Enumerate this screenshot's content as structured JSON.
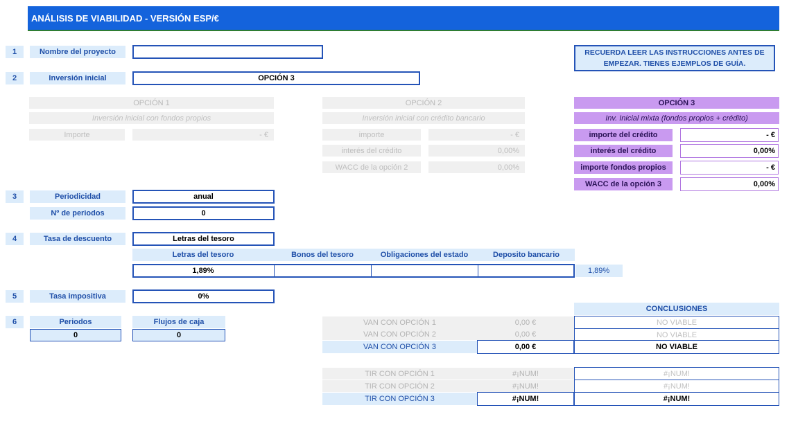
{
  "title": "ANÁLISIS DE VIABILIDAD - VERSIÓN ESP/€",
  "note": "RECUERDA LEER LAS INSTRUCCIONES ANTES DE EMPEZAR. TIENES EJEMPLOS DE GUÍA.",
  "steps": {
    "s1": {
      "num": "1",
      "label": "Nombre del proyecto",
      "value": ""
    },
    "s2": {
      "num": "2",
      "label": "Inversión inicial",
      "value": "OPCIÓN 3"
    },
    "s3": {
      "num": "3",
      "label": "Periodicidad",
      "value": "anual",
      "label2": "Nº de periodos",
      "value2": "0"
    },
    "s4": {
      "num": "4",
      "label": "Tasa de descuento",
      "value": "Letras del tesoro"
    },
    "s5": {
      "num": "5",
      "label": "Tasa impositiva",
      "value": "0%"
    },
    "s6": {
      "num": "6",
      "label": "Periodos",
      "value": "0",
      "label2": "Flujos de caja",
      "value2": "0"
    }
  },
  "option1": {
    "header": "OPCIÓN 1",
    "subtitle": "Inversión inicial con fondos propios",
    "importe_label": "Importe",
    "importe_value": "-   €"
  },
  "option2": {
    "header": "OPCIÓN 2",
    "subtitle": "Inversión inicial con crédito bancario",
    "importe_label": "importe",
    "importe_value": "-   €",
    "interes_label": "interés del crédito",
    "interes_value": "0,00%",
    "wacc_label": "WACC de la opción 2",
    "wacc_value": "0,00%"
  },
  "option3": {
    "header": "OPCIÓN 3",
    "subtitle": "Inv. Inicial mixta (fondos propios + crédito)",
    "importe_label": "importe del crédito",
    "importe_value": "-   €",
    "interes_label": "interés del crédito",
    "interes_value": "0,00%",
    "fondos_label": "importe fondos propios",
    "fondos_value": "-   €",
    "wacc_label": "WACC de la opción 3",
    "wacc_value": "0,00%"
  },
  "rates": {
    "headers": [
      "Letras del tesoro",
      "Bonos del tesoro",
      "Obligaciones del estado",
      "Deposito bancario"
    ],
    "values": [
      "1,89%",
      "",
      "",
      ""
    ],
    "selected": "1,89%"
  },
  "van": {
    "rows": [
      {
        "label": "VAN CON OPCIÓN 1",
        "value": "0,00 €",
        "conclusion": "NO VIABLE"
      },
      {
        "label": "VAN CON OPCIÓN 2",
        "value": "0,00 €",
        "conclusion": "NO VIABLE"
      },
      {
        "label": "VAN CON OPCIÓN 3",
        "value": "0,00 €",
        "conclusion": "NO VIABLE"
      }
    ]
  },
  "tir": {
    "rows": [
      {
        "label": "TIR CON OPCIÓN 1",
        "value": "#¡NUM!",
        "conclusion": "#¡NUM!"
      },
      {
        "label": "TIR CON OPCIÓN 2",
        "value": "#¡NUM!",
        "conclusion": "#¡NUM!"
      },
      {
        "label": "TIR CON OPCIÓN 3",
        "value": "#¡NUM!",
        "conclusion": "#¡NUM!"
      }
    ]
  },
  "conclusiones_header": "CONCLUSIONES",
  "colors": {
    "accent": "#1463dc",
    "light_blue": "#dcecfb",
    "border_blue": "#2453b7",
    "purple": "#c99af0",
    "gray": "#f0f0f0"
  }
}
